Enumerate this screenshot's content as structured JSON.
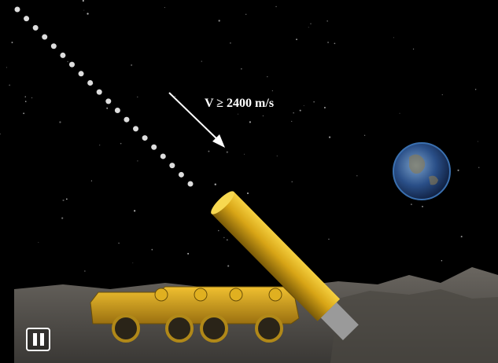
{
  "annotation": "V ≥ 2400 m/s"
}
